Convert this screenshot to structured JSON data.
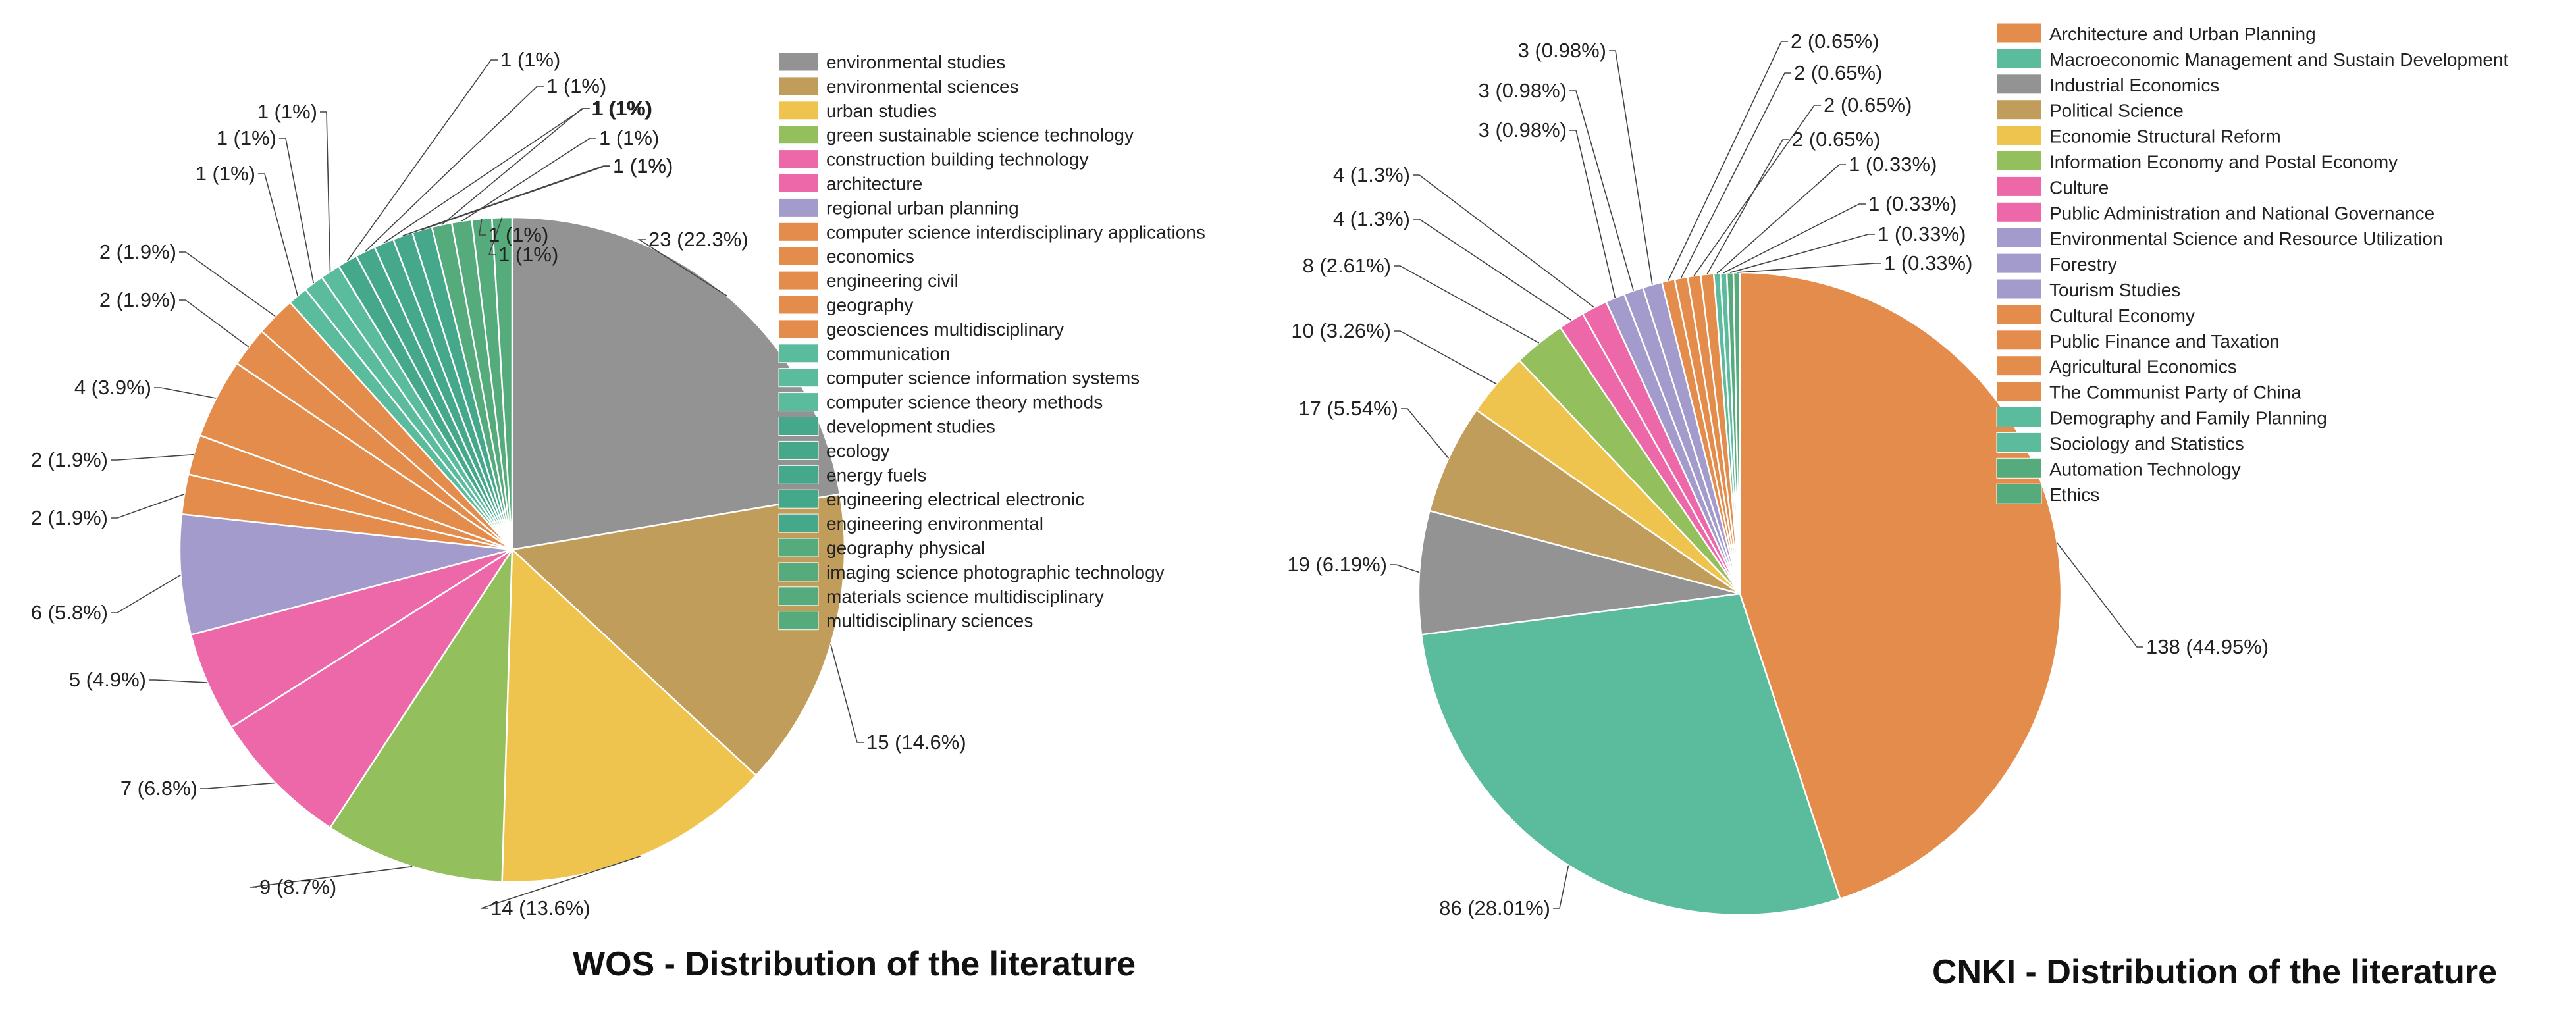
{
  "chart_data": [
    {
      "type": "pie",
      "title": "WOS - Distribution of the literature",
      "legend_position": "right",
      "slices": [
        {
          "name": "environmental studies",
          "value": 23,
          "label": "23 (22.3%)",
          "color": "#939393"
        },
        {
          "name": "environmental sciences",
          "value": 15,
          "label": "15 (14.6%)",
          "color": "#c19d5c"
        },
        {
          "name": "urban studies",
          "value": 14,
          "label": "14 (13.6%)",
          "color": "#efc44e"
        },
        {
          "name": "green sustainable science technology",
          "value": 9,
          "label": "9 (8.7%)",
          "color": "#93c05d"
        },
        {
          "name": "construction building technology",
          "value": 7,
          "label": "7 (6.8%)",
          "color": "#ec68a9"
        },
        {
          "name": "architecture",
          "value": 5,
          "label": "5 (4.9%)",
          "color": "#ec68a9"
        },
        {
          "name": "regional urban planning",
          "value": 6,
          "label": "6 (5.8%)",
          "color": "#a39bcc"
        },
        {
          "name": "computer science interdisciplinary applications",
          "value": 2,
          "label": "2 (1.9%)",
          "color": "#e48c4c"
        },
        {
          "name": "economics",
          "value": 2,
          "label": "2 (1.9%)",
          "color": "#e48c4c"
        },
        {
          "name": "engineering civil",
          "value": 4,
          "label": "4 (3.9%)",
          "color": "#e48c4c"
        },
        {
          "name": "geography",
          "value": 2,
          "label": "2 (1.9%)",
          "color": "#e48c4c"
        },
        {
          "name": "geosciences multidisciplinary",
          "value": 2,
          "label": "2 (1.9%)",
          "color": "#e48c4c"
        },
        {
          "name": "communication",
          "value": 1,
          "label": "1 (1%)",
          "color": "#5bbb9d"
        },
        {
          "name": "computer science information systems",
          "value": 1,
          "label": "1 (1%)",
          "color": "#5bbb9d"
        },
        {
          "name": "computer science theory methods",
          "value": 1,
          "label": "1 (1%)",
          "color": "#5bbb9d"
        },
        {
          "name": "development studies",
          "value": 1,
          "label": "1 (1%)",
          "color": "#45a88a"
        },
        {
          "name": "ecology",
          "value": 1,
          "label": "1 (1%)",
          "color": "#45a88a"
        },
        {
          "name": "energy fuels",
          "value": 1,
          "label": "1 (1%)",
          "color": "#45a88a"
        },
        {
          "name": "engineering electrical electronic",
          "value": 1,
          "label": "1 (1%)",
          "color": "#45a88a"
        },
        {
          "name": "engineering environmental",
          "value": 1,
          "label": "1 (1%)",
          "color": "#45a88a"
        },
        {
          "name": "geography physical",
          "value": 1,
          "label": "1 (1%)",
          "color": "#56ab7c"
        },
        {
          "name": "imaging science photographic technology",
          "value": 1,
          "label": "1 (1%)",
          "color": "#56ab7c"
        },
        {
          "name": "materials science multidisciplinary",
          "value": 1,
          "label": "1 (1%)",
          "color": "#56ab7c"
        },
        {
          "name": "multidisciplinary sciences",
          "value": 1,
          "label": "1 (1%)",
          "color": "#56ab7c"
        }
      ]
    },
    {
      "type": "pie",
      "title": "CNKI - Distribution of the literature",
      "legend_position": "right",
      "slices": [
        {
          "name": "Architecture and Urban Planning",
          "value": 138,
          "label": "138 (44.95%)",
          "color": "#e48c4c"
        },
        {
          "name": "Macroeconomic Management and Sustain Development",
          "value": 86,
          "label": "86 (28.01%)",
          "color": "#5bbb9d"
        },
        {
          "name": "Industrial Economics",
          "value": 19,
          "label": "19 (6.19%)",
          "color": "#939393"
        },
        {
          "name": "Political Science",
          "value": 17,
          "label": "17 (5.54%)",
          "color": "#c19d5c"
        },
        {
          "name": "Economie Structural Reform",
          "value": 10,
          "label": "10 (3.26%)",
          "color": "#efc44e"
        },
        {
          "name": "Information Economy and Postal Economy",
          "value": 8,
          "label": "8 (2.61%)",
          "color": "#93c05d"
        },
        {
          "name": "Culture",
          "value": 4,
          "label": "4 (1.3%)",
          "color": "#ec68a9"
        },
        {
          "name": "Public Administration and National Governance",
          "value": 4,
          "label": "4 (1.3%)",
          "color": "#ec68a9"
        },
        {
          "name": "Environmental Science and Resource Utilization",
          "value": 3,
          "label": "3 (0.98%)",
          "color": "#a39bcc"
        },
        {
          "name": "Forestry",
          "value": 3,
          "label": "3 (0.98%)",
          "color": "#a39bcc"
        },
        {
          "name": "Tourism Studies",
          "value": 3,
          "label": "3 (0.98%)",
          "color": "#a39bcc"
        },
        {
          "name": "Cultural Economy",
          "value": 2,
          "label": "2 (0.65%)",
          "color": "#e48c4c"
        },
        {
          "name": "Public Finance and Taxation",
          "value": 2,
          "label": "2 (0.65%)",
          "color": "#e48c4c"
        },
        {
          "name": "Agricultural Economics",
          "value": 2,
          "label": "2 (0.65%)",
          "color": "#e48c4c"
        },
        {
          "name": "The Communist Party of China",
          "value": 2,
          "label": "2 (0.65%)",
          "color": "#e48c4c"
        },
        {
          "name": "Demography and Family Planning",
          "value": 1,
          "label": "1 (0.33%)",
          "color": "#5bbb9d"
        },
        {
          "name": "Sociology and Statistics",
          "value": 1,
          "label": "1 (0.33%)",
          "color": "#5bbb9d"
        },
        {
          "name": "Automation Technology",
          "value": 1,
          "label": "1 (0.33%)",
          "color": "#56ab7c"
        },
        {
          "name": "Ethics",
          "value": 1,
          "label": "1 (0.33%)",
          "color": "#56ab7c"
        }
      ]
    }
  ]
}
